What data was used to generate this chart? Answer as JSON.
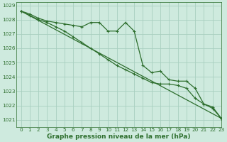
{
  "title": "Graphe pression niveau de la mer (hPa)",
  "background_color": "#ceeade",
  "grid_color": "#a8cfc0",
  "line_color": "#2d6e2d",
  "xlim": [
    -0.5,
    23
  ],
  "ylim": [
    1020.5,
    1029.2
  ],
  "yticks": [
    1021,
    1022,
    1023,
    1024,
    1025,
    1026,
    1027,
    1028,
    1029
  ],
  "xticks": [
    0,
    1,
    2,
    3,
    4,
    5,
    6,
    7,
    8,
    9,
    10,
    11,
    12,
    13,
    14,
    15,
    16,
    17,
    18,
    19,
    20,
    21,
    22,
    23
  ],
  "series1_x": [
    0,
    1,
    2,
    3,
    4,
    5,
    6,
    7,
    8,
    9,
    10,
    11,
    12,
    13,
    14,
    15,
    16,
    17,
    18,
    19,
    20,
    21,
    22,
    23
  ],
  "series1_y": [
    1028.6,
    1028.4,
    1028.1,
    1027.9,
    1027.8,
    1027.7,
    1027.6,
    1027.5,
    1027.8,
    1027.8,
    1027.2,
    1027.2,
    1027.8,
    1027.2,
    1024.8,
    1024.3,
    1024.4,
    1023.8,
    1023.7,
    1023.7,
    1023.2,
    1022.1,
    1021.9,
    1021.1
  ],
  "series2_x": [
    0,
    1,
    2,
    3,
    4,
    5,
    6,
    7,
    8,
    9,
    10,
    11,
    12,
    13,
    14,
    15,
    16,
    17,
    18,
    19,
    20,
    21,
    22,
    23
  ],
  "series2_y": [
    1028.6,
    1028.3,
    1028.0,
    1027.8,
    1027.5,
    1027.2,
    1026.8,
    1026.4,
    1026.0,
    1025.6,
    1025.2,
    1024.8,
    1024.5,
    1024.2,
    1023.9,
    1023.6,
    1023.5,
    1023.5,
    1023.4,
    1023.2,
    1022.5,
    1022.1,
    1021.8,
    1021.1
  ],
  "series3_x": [
    0,
    23
  ],
  "series3_y": [
    1028.6,
    1021.1
  ],
  "title_fontsize": 6.5,
  "tick_fontsize": 5.2,
  "xlabel_fontweight": "bold"
}
